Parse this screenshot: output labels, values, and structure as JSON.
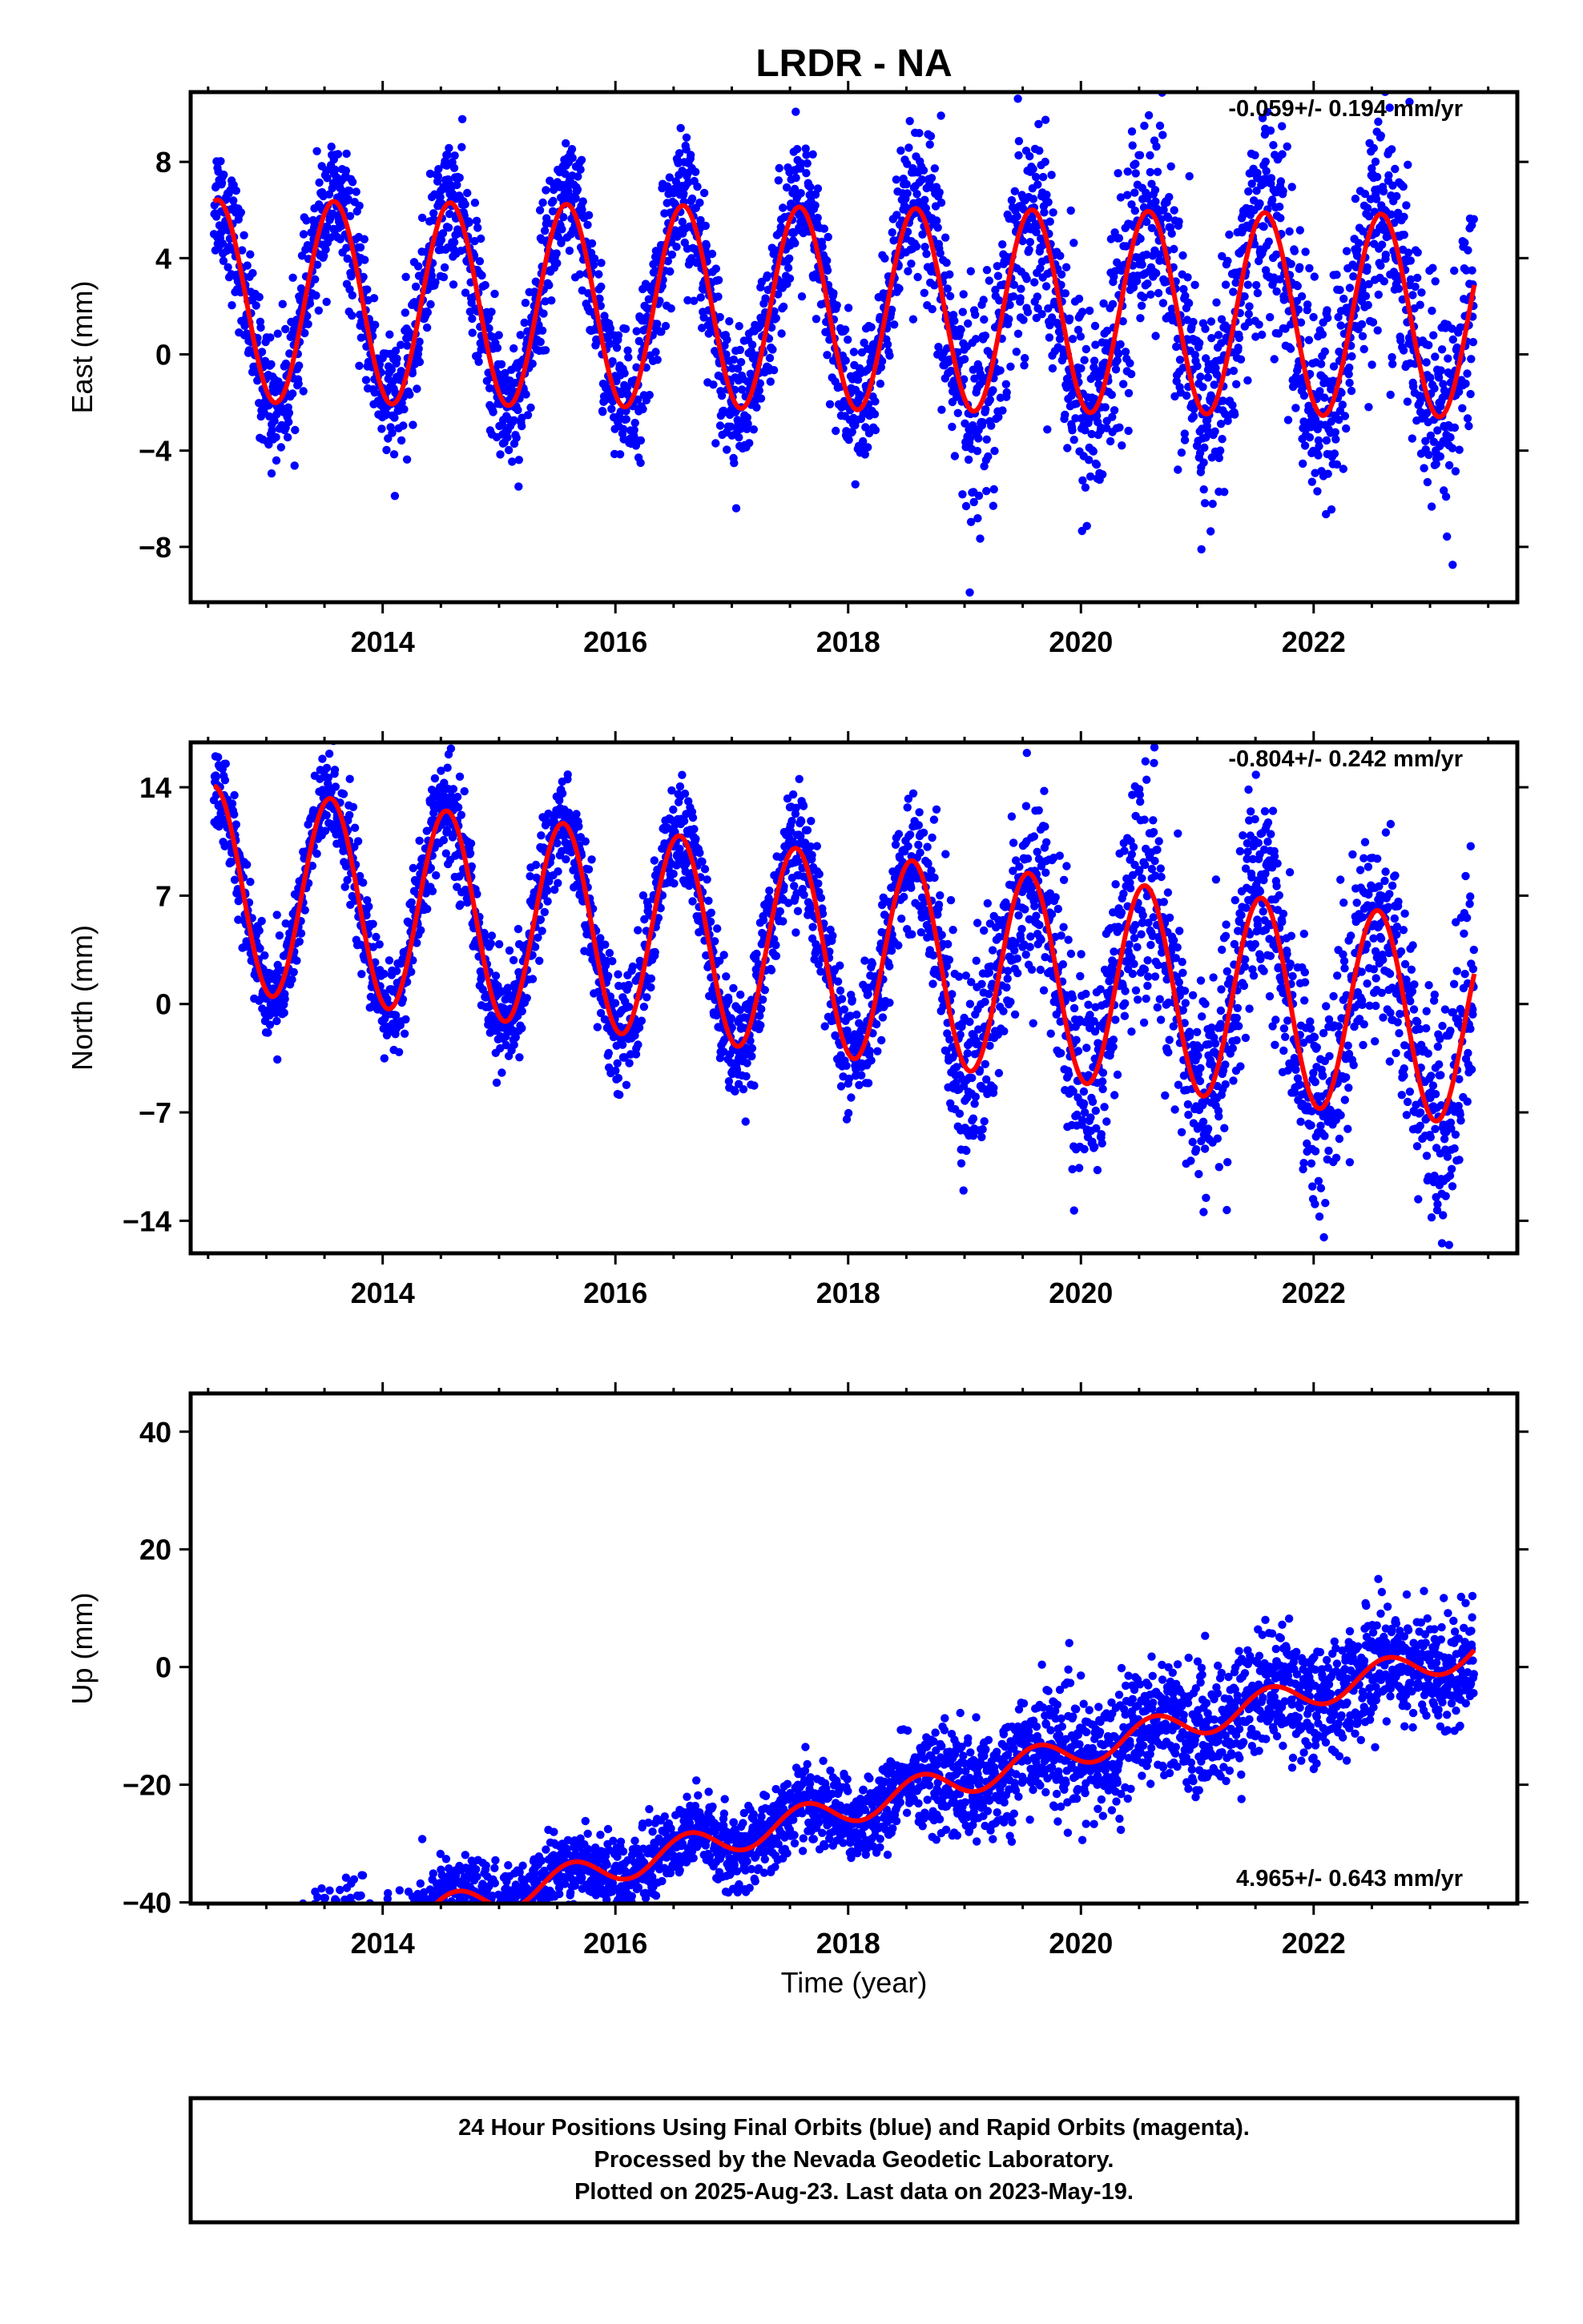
{
  "title": "LRDR - NA",
  "x_axis_label": "Time (year)",
  "colors": {
    "final_orbits": "#0000ff",
    "model_fit": "#ff0000",
    "frame": "#000000"
  },
  "footer": {
    "line1": "24 Hour Positions Using Final Orbits (blue) and Rapid Orbits (magenta).",
    "line2": "Processed by the Nevada Geodetic Laboratory.",
    "line3": "Plotted on 2025-Aug-23. Last data on 2023-May-19."
  },
  "chart_data": [
    {
      "type": "scatter",
      "component": "east",
      "ylabel": "East (mm)",
      "rate_label": "-0.059+/- 0.194 mm/yr",
      "xlim": [
        2012.35,
        2023.75
      ],
      "ylim": [
        -10.3,
        10.9
      ],
      "xticks": [
        2014,
        2016,
        2018,
        2020,
        2022
      ],
      "yticks": [
        8,
        4,
        0,
        -4,
        -8
      ],
      "ytick_labels": [
        "8",
        "4",
        "0",
        "−4",
        "−8"
      ],
      "trend": {
        "intercept": 1.9,
        "slope": -0.059
      },
      "seasonal": {
        "annual_amp": 4.2,
        "annual_peak": 0.58,
        "semiannual_amp": 0.0
      },
      "scatter_sigma": [
        1.3,
        2.3
      ],
      "data_start": 2012.55,
      "data_end": 2023.38
    },
    {
      "type": "scatter",
      "component": "north",
      "ylabel": "North (mm)",
      "rate_label": "-0.804+/- 0.242 mm/yr",
      "xlim": [
        2012.35,
        2023.75
      ],
      "ylim": [
        -16.1,
        16.9
      ],
      "xticks": [
        2014,
        2016,
        2018,
        2020,
        2022
      ],
      "yticks": [
        14,
        7,
        0,
        -7,
        -14
      ],
      "ytick_labels": [
        "14",
        "7",
        "0",
        "−7",
        "−14"
      ],
      "trend": {
        "intercept": 3.1,
        "slope": -0.804
      },
      "seasonal": {
        "annual_amp": 6.6,
        "annual_peak": 0.55,
        "semiannual_amp": 0.0
      },
      "scatter_sigma": [
        1.5,
        3.5
      ],
      "data_start": 2012.55,
      "data_end": 2023.38
    },
    {
      "type": "scatter",
      "component": "up",
      "ylabel": "Up (mm)",
      "rate_label": "4.965+/- 0.643 mm/yr",
      "xlim": [
        2012.35,
        2023.75
      ],
      "ylim": [
        -40.2,
        46.5
      ],
      "xticks": [
        2014,
        2016,
        2018,
        2020,
        2022
      ],
      "yticks": [
        40,
        20,
        0,
        -20,
        -40
      ],
      "ytick_labels": [
        "40",
        "20",
        "0",
        "−20",
        "−40"
      ],
      "trend": {
        "intercept": -24.0,
        "slope": 4.965
      },
      "seasonal": {
        "annual_amp": 2.6,
        "annual_peak": 0.62,
        "semiannual_amp": 0.0
      },
      "scatter_sigma": [
        3.0,
        5.0
      ],
      "data_start": 2012.55,
      "data_end": 2023.38
    }
  ]
}
